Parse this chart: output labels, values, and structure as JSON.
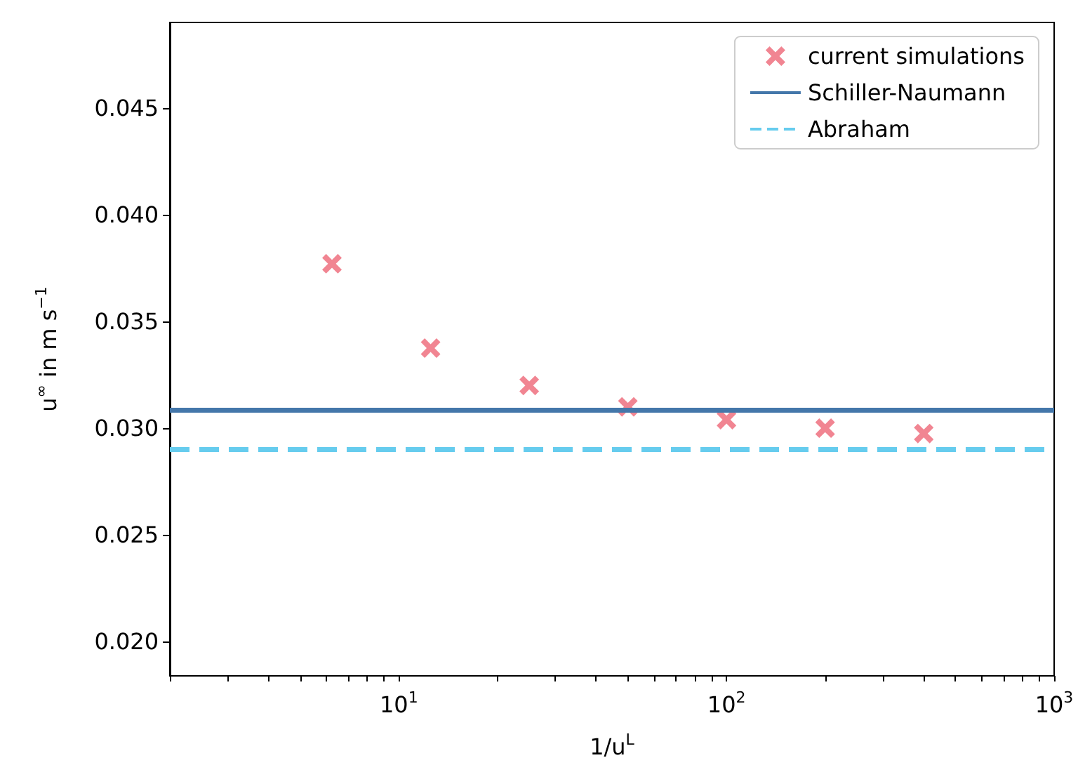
{
  "chart_data": {
    "type": "scatter",
    "xlabel": "1/u$^{L}$",
    "ylabel": "u$^{∞}$ in m s$^{−1}$",
    "log": "x",
    "grid": false,
    "legend": "top right",
    "marker": "cross",
    "xlim": [
      2,
      1000
    ],
    "xticks": [
      {
        "value": 2,
        "label": null
      },
      {
        "value": 3,
        "label": null
      },
      {
        "value": 4,
        "label": null
      },
      {
        "value": 5,
        "label": null
      },
      {
        "value": 6,
        "label": null
      },
      {
        "value": 7,
        "label": null
      },
      {
        "value": 8,
        "label": null
      },
      {
        "value": 9,
        "label": null
      },
      {
        "value": 10,
        "label": "10$^{1}$"
      },
      {
        "value": 20,
        "label": null
      },
      {
        "value": 30,
        "label": null
      },
      {
        "value": 40,
        "label": null
      },
      {
        "value": 50,
        "label": null
      },
      {
        "value": 60,
        "label": null
      },
      {
        "value": 70,
        "label": null
      },
      {
        "value": 80,
        "label": null
      },
      {
        "value": 90,
        "label": null
      },
      {
        "value": 100,
        "label": "10$^{2}$"
      },
      {
        "value": 200,
        "label": null
      },
      {
        "value": 300,
        "label": null
      },
      {
        "value": 400,
        "label": null
      },
      {
        "value": 500,
        "label": null
      },
      {
        "value": 600,
        "label": null
      },
      {
        "value": 700,
        "label": null
      },
      {
        "value": 800,
        "label": null
      },
      {
        "value": 900,
        "label": null
      },
      {
        "value": 1000,
        "label": "10$^{3}$"
      }
    ],
    "ylim": [
      0.0184,
      0.049
    ],
    "yticks": [
      {
        "value": 0.02,
        "label": "0.020"
      },
      {
        "value": 0.025,
        "label": "0.025"
      },
      {
        "value": 0.03,
        "label": "0.030"
      },
      {
        "value": 0.035,
        "label": "0.035"
      },
      {
        "value": 0.04,
        "label": "0.040"
      },
      {
        "value": 0.045,
        "label": "0.045"
      }
    ],
    "series": [
      {
        "name": "current simulations",
        "type": "scatter",
        "color": "#ee6677",
        "x": [
          6.25,
          12.5,
          25,
          50,
          100,
          200,
          400
        ],
        "values": [
          0.0377,
          0.03375,
          0.032,
          0.031,
          0.0304,
          0.03,
          0.02975
        ]
      },
      {
        "name": "Schiller-Naumann",
        "type": "line",
        "marker": "none",
        "line_style": "solid",
        "color": "#4477aa",
        "x": [
          2,
          1000
        ],
        "values": [
          0.03084,
          0.03084
        ]
      },
      {
        "name": "Abraham",
        "type": "line",
        "marker": "none",
        "line_style": "dashed",
        "color": "#66ccee",
        "x": [
          2,
          1000
        ],
        "values": [
          0.029,
          0.029
        ]
      }
    ]
  }
}
